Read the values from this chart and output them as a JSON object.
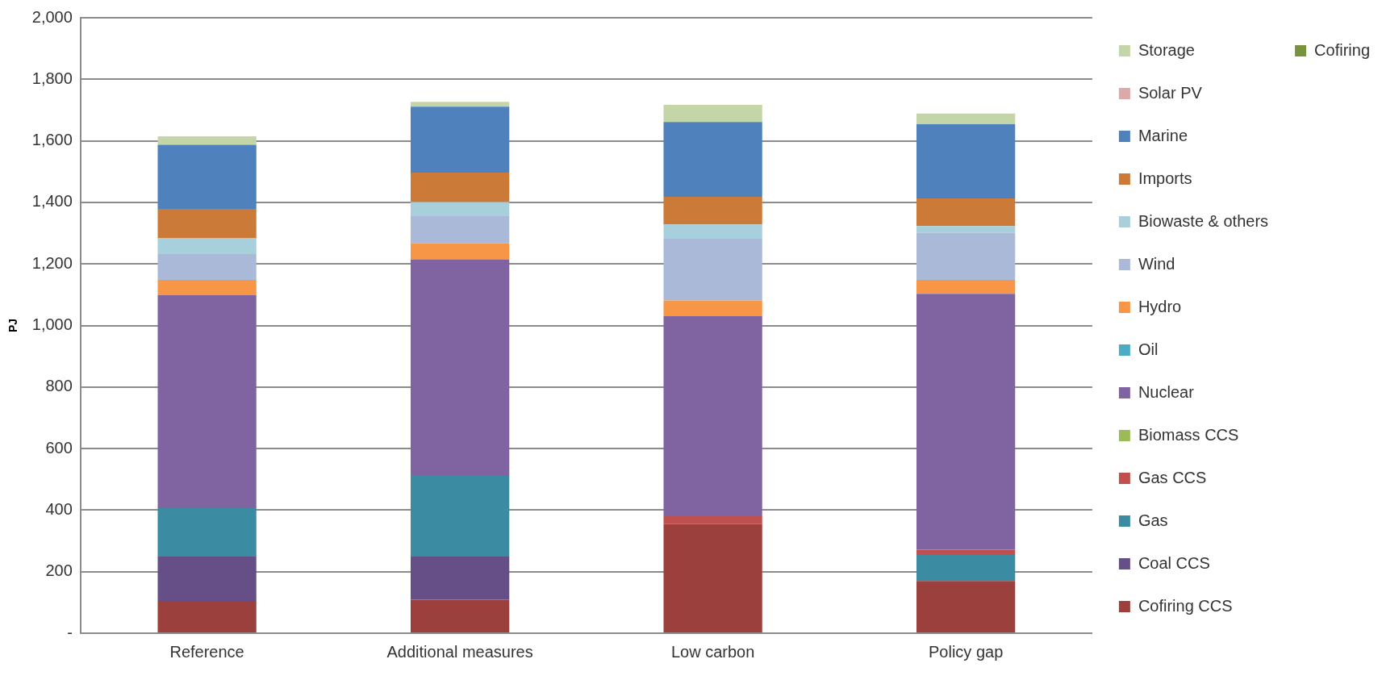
{
  "chart_data": {
    "type": "bar",
    "stacked": true,
    "ylabel": "PJ",
    "categories": [
      "Reference",
      "Additional measures",
      "Low carbon",
      "Policy gap"
    ],
    "series": [
      {
        "name": "Cofiring",
        "color": "#77933c",
        "values": [
          0,
          0,
          0,
          0
        ]
      },
      {
        "name": "Cofiring CCS",
        "color": "#9c403e",
        "values": [
          102,
          109,
          355,
          170
        ]
      },
      {
        "name": "Coal CCS",
        "color": "#664f86",
        "values": [
          147,
          140,
          0,
          0
        ]
      },
      {
        "name": "Gas",
        "color": "#3b8ba2",
        "values": [
          157,
          265,
          0,
          84
        ]
      },
      {
        "name": "Gas CCS",
        "color": "#c0504d",
        "values": [
          0,
          0,
          28,
          17
        ]
      },
      {
        "name": "Biomass CCS",
        "color": "#9bbb59",
        "values": [
          0,
          0,
          0,
          0
        ]
      },
      {
        "name": "Nuclear",
        "color": "#8064a2",
        "values": [
          692,
          701,
          647,
          832
        ]
      },
      {
        "name": "Oil",
        "color": "#4bacc6",
        "values": [
          0,
          0,
          0,
          0
        ]
      },
      {
        "name": "Hydro",
        "color": "#f79646",
        "values": [
          50,
          52,
          51,
          45
        ]
      },
      {
        "name": "Wind",
        "color": "#aab9d7",
        "values": [
          84,
          90,
          203,
          153
        ]
      },
      {
        "name": "Biowaste & others",
        "color": "#a8cfdc",
        "values": [
          51,
          44,
          44,
          22
        ]
      },
      {
        "name": "Imports",
        "color": "#cb7b37",
        "values": [
          96,
          96,
          90,
          90
        ]
      },
      {
        "name": "Marine",
        "color": "#4f81bd",
        "values": [
          208,
          214,
          243,
          241
        ]
      },
      {
        "name": "Solar PV",
        "color": "#dba9a8",
        "values": [
          0,
          0,
          0,
          0
        ]
      },
      {
        "name": "Storage",
        "color": "#c4d5a8",
        "values": [
          28,
          16,
          56,
          35
        ]
      }
    ],
    "ylim": [
      0,
      2000
    ],
    "yticks": [
      {
        "value": 0,
        "label": "-"
      },
      {
        "value": 200,
        "label": "200"
      },
      {
        "value": 400,
        "label": "400"
      },
      {
        "value": 600,
        "label": "600"
      },
      {
        "value": 800,
        "label": "800"
      },
      {
        "value": 1000,
        "label": "1,000"
      },
      {
        "value": 1200,
        "label": "1,200"
      },
      {
        "value": 1400,
        "label": "1,400"
      },
      {
        "value": 1600,
        "label": "1,600"
      },
      {
        "value": 1800,
        "label": "1,800"
      },
      {
        "value": 2000,
        "label": "2,000"
      }
    ],
    "grid": "y",
    "legend": "right"
  }
}
